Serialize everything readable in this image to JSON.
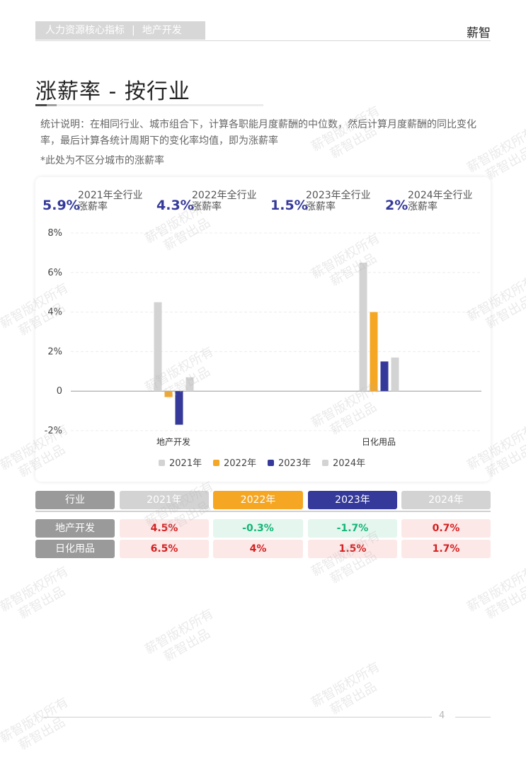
{
  "header": {
    "breadcrumb": [
      "人力资源核心指标",
      "地产开发"
    ],
    "separator": "|",
    "brand": "薪智"
  },
  "page_title": "涨薪率 - 按行业",
  "description": "统计说明：在相同行业、城市组合下，计算各职能月度薪酬的中位数，然后计算月度薪酬的同比变化率，最后计算各统计周期下的变化率均值，即为涨薪率",
  "note": "*此处为不区分城市的涨薪率",
  "summary": [
    {
      "value": "5.9%",
      "label_1": "2021年全行业",
      "label_2": "涨薪率"
    },
    {
      "value": "4.3%",
      "label_1": "2022年全行业",
      "label_2": "涨薪率"
    },
    {
      "value": "1.5%",
      "label_1": "2023年全行业",
      "label_2": "涨薪率"
    },
    {
      "value": "2%",
      "label_1": "2024年全行业",
      "label_2": "涨薪率"
    }
  ],
  "chart_data": {
    "type": "bar",
    "categories": [
      "地产开发",
      "日化用品"
    ],
    "series": [
      {
        "name": "2021年",
        "values": [
          4.5,
          6.5
        ],
        "color": "#d3d3d3"
      },
      {
        "name": "2022年",
        "values": [
          -0.3,
          4.0
        ],
        "color": "#f5a623"
      },
      {
        "name": "2023年",
        "values": [
          -1.7,
          1.5
        ],
        "color": "#34399a"
      },
      {
        "name": "2024年",
        "values": [
          0.7,
          1.7
        ],
        "color": "#d3d3d3"
      }
    ],
    "ylim": [
      -2,
      8
    ],
    "yticks": [
      "8%",
      "6%",
      "4%",
      "2%",
      "0",
      "-2%"
    ],
    "ytick_values": [
      8,
      6,
      4,
      2,
      0,
      -2
    ],
    "grid": true,
    "legend": "bottom"
  },
  "table": {
    "header_label": "行业",
    "years": [
      "2021年",
      "2022年",
      "2023年",
      "2024年"
    ],
    "year_colors": [
      "#d3d3d3",
      "#f5a623",
      "#34399a",
      "#d3d3d3"
    ],
    "rows": [
      {
        "name": "地产开发",
        "values": [
          "4.5%",
          "-0.3%",
          "-1.7%",
          "0.7%"
        ]
      },
      {
        "name": "日化用品",
        "values": [
          "6.5%",
          "4%",
          "1.5%",
          "1.7%"
        ]
      }
    ]
  },
  "page_number": "4",
  "watermark": [
    "薪智版权所有",
    "薪智出品"
  ]
}
